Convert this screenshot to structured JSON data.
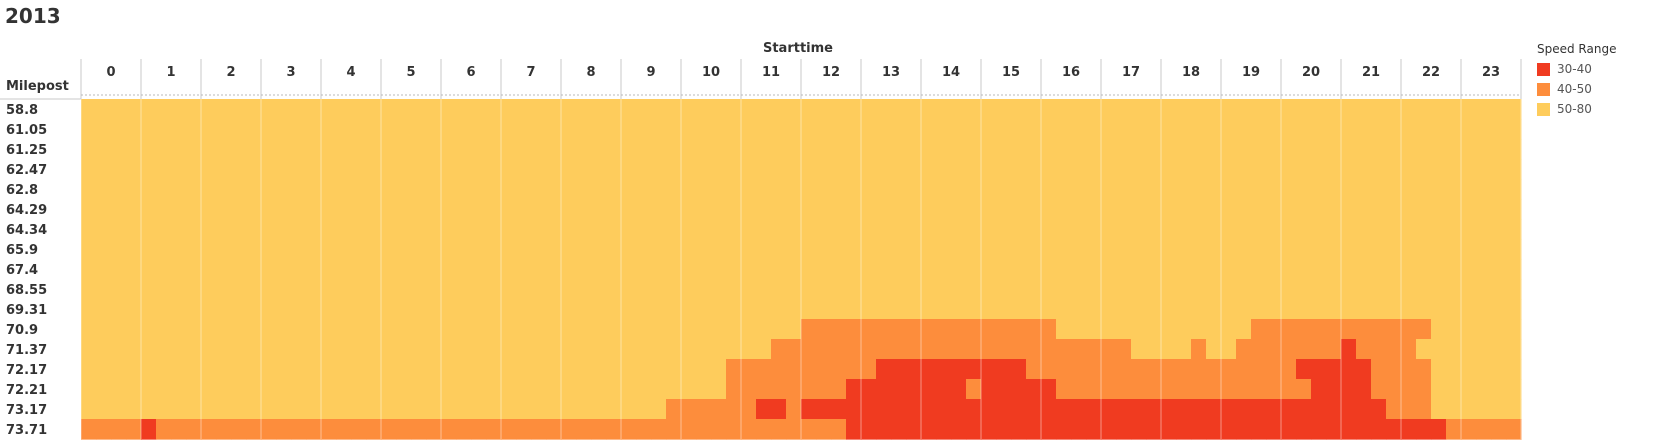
{
  "chart_data": {
    "type": "heatmap",
    "title": "2013",
    "xlabel": "Starttime",
    "ylabel": "Milepost",
    "x": [
      "0",
      "1",
      "2",
      "3",
      "4",
      "5",
      "6",
      "7",
      "8",
      "9",
      "10",
      "11",
      "12",
      "13",
      "14",
      "15",
      "16",
      "17",
      "18",
      "19",
      "20",
      "21",
      "22",
      "23"
    ],
    "y": [
      "58.8",
      "61.05",
      "61.25",
      "62.47",
      "62.8",
      "64.29",
      "64.34",
      "65.9",
      "67.4",
      "68.55",
      "69.31",
      "70.9",
      "71.37",
      "72.17",
      "72.21",
      "73.17",
      "73.71"
    ],
    "x_subdivisions_per_hour": 4,
    "color_scale": {
      "1": "30-40",
      "2": "40-50",
      "3": "50-80"
    },
    "rows": [
      "333333333333333333333333333333333333333333333333333333333333333333333333333333333333333333333333",
      "333333333333333333333333333333333333333333333333333333333333333333333333333333333333333333333333",
      "333333333333333333333333333333333333333333333333333333333333333333333333333333333333333333333333",
      "333333333333333333333333333333333333333333333333333333333333333333333333333333333333333333333333",
      "333333333333333333333333333333333333333333333333333333333333333333333333333333333333333333333333",
      "333333333333333333333333333333333333333333333333333333333333333333333333333333333333333333333333",
      "333333333333333333333333333333333333333333333333333333333333333333333333333333333333333333333333",
      "333333333333333333333333333333333333333333333333333333333333333333333333333333333333333333333333",
      "333333333333333333333333333333333333333333333333333333333333333333333333333333333333333333333333",
      "333333333333333333333333333333333333333333333333333333333333333333333333333333333333333333333333",
      "333333333333333333333333333333333333333333333333333333333333333333333333333333333333333333333333",
      "333333333333333333333333333333333333333333333333222222222222222223333333333333222222222222333333",
      "333333333333333333333333333333333333333333333322222222222222222222222233332332222222122223333333",
      "333333333333333333333333333333333333333333322222222221111111111222222222222222222111112222333333",
      "333333333333333333333333333333333333333333322222222111111112111112222222222222222211112222333333",
      "333333333333333333333333333333333333333222222112111111111111111111111111111111111111111222333333",
      "222212222222222222222222222222222222222222222222222111111111111111111111111111111111111111122222"
    ],
    "legend": {
      "title": "Speed Range",
      "entries": [
        "30-40",
        "40-50",
        "50-80"
      ],
      "colors": [
        "#f03b20",
        "#fd8d3c",
        "#fecc5c"
      ]
    }
  }
}
